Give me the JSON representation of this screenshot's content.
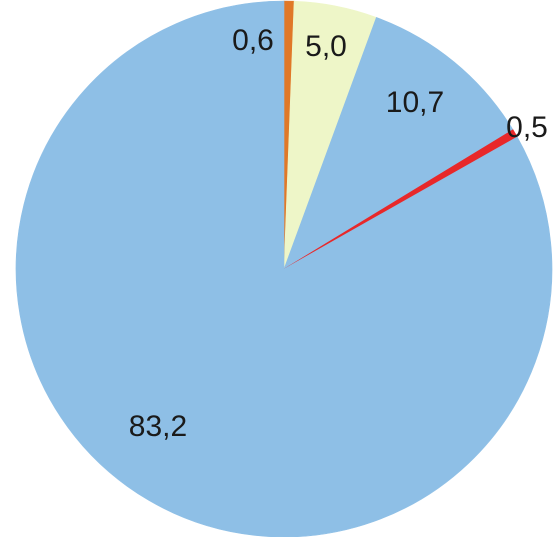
{
  "chart_data": {
    "type": "pie",
    "title": "",
    "slices": [
      {
        "label": "0,6",
        "value": 0.6,
        "color": "#e07828"
      },
      {
        "label": "5,0",
        "value": 5.0,
        "color": "#eef6c8"
      },
      {
        "label": "10,7",
        "value": 10.7,
        "color": "#8ebfe6"
      },
      {
        "label": "0,5",
        "value": 0.5,
        "color": "#e8282a"
      },
      {
        "label": "83,2",
        "value": 83.2,
        "color": "#8ebfe6"
      }
    ],
    "start_angle_deg": 0,
    "direction": "clockwise"
  }
}
